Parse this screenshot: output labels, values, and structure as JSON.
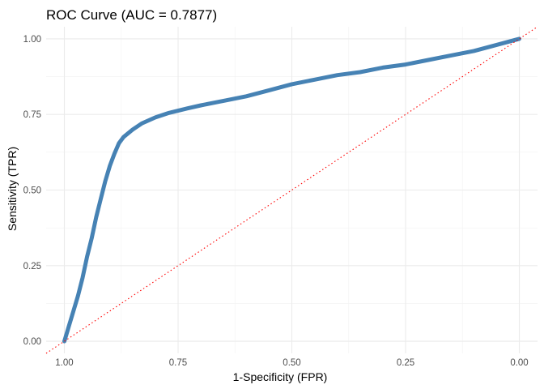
{
  "chart_data": {
    "type": "line",
    "title": "ROC Curve (AUC = 0.7877)",
    "xlabel": "1-Specificity (FPR)",
    "ylabel": "Sensitivity (TPR)",
    "x_axis_reversed": true,
    "xlim": [
      1.04,
      -0.04
    ],
    "ylim": [
      -0.04,
      1.04
    ],
    "x_ticks": [
      1.0,
      0.75,
      0.5,
      0.25,
      0.0
    ],
    "x_tick_labels": [
      "1.00",
      "0.75",
      "0.50",
      "0.25",
      "0.00"
    ],
    "y_ticks": [
      0.0,
      0.25,
      0.5,
      0.75,
      1.0
    ],
    "y_tick_labels": [
      "0.00",
      "0.25",
      "0.50",
      "0.75",
      "1.00"
    ],
    "grid": true,
    "series": [
      {
        "style": "solid",
        "color": "#4682B4",
        "points": [
          [
            1.0,
            0.0
          ],
          [
            0.99,
            0.05
          ],
          [
            0.98,
            0.1
          ],
          [
            0.97,
            0.15
          ],
          [
            0.96,
            0.21
          ],
          [
            0.95,
            0.28
          ],
          [
            0.94,
            0.34
          ],
          [
            0.93,
            0.41
          ],
          [
            0.92,
            0.47
          ],
          [
            0.91,
            0.53
          ],
          [
            0.9,
            0.58
          ],
          [
            0.89,
            0.62
          ],
          [
            0.88,
            0.655
          ],
          [
            0.87,
            0.675
          ],
          [
            0.85,
            0.7
          ],
          [
            0.83,
            0.72
          ],
          [
            0.8,
            0.74
          ],
          [
            0.77,
            0.755
          ],
          [
            0.73,
            0.77
          ],
          [
            0.7,
            0.78
          ],
          [
            0.65,
            0.795
          ],
          [
            0.6,
            0.81
          ],
          [
            0.55,
            0.83
          ],
          [
            0.5,
            0.85
          ],
          [
            0.45,
            0.865
          ],
          [
            0.4,
            0.88
          ],
          [
            0.35,
            0.89
          ],
          [
            0.3,
            0.905
          ],
          [
            0.25,
            0.915
          ],
          [
            0.2,
            0.93
          ],
          [
            0.15,
            0.945
          ],
          [
            0.1,
            0.96
          ],
          [
            0.05,
            0.98
          ],
          [
            0.0,
            1.0
          ]
        ]
      },
      {
        "style": "dotted",
        "color": "#FF0000",
        "points": [
          [
            1.04,
            -0.04
          ],
          [
            -0.04,
            1.04
          ]
        ]
      }
    ]
  }
}
